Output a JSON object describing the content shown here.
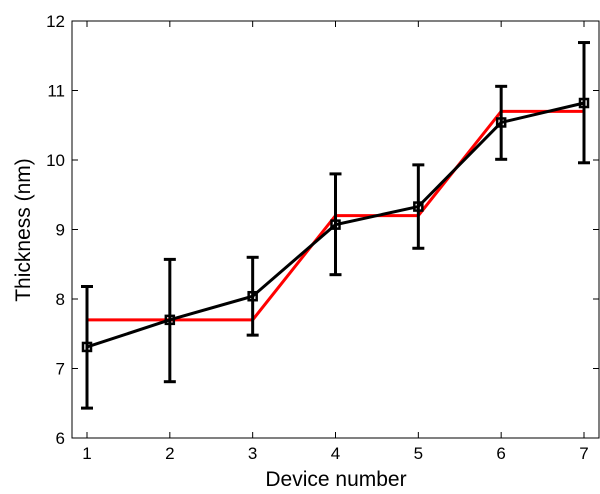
{
  "chart_data": {
    "type": "line",
    "xlabel": "Device number",
    "ylabel": "Thickness (nm)",
    "xlim": [
      1,
      7
    ],
    "ylim": [
      6,
      12
    ],
    "xticks": [
      1,
      2,
      3,
      4,
      5,
      6,
      7
    ],
    "yticks": [
      6,
      7,
      8,
      9,
      10,
      11,
      12
    ],
    "grid": false,
    "series": [
      {
        "style": "step-line",
        "color": "#ff0000",
        "points": [
          {
            "x": 1,
            "y": 7.7
          },
          {
            "x": 3,
            "y": 7.7
          },
          {
            "x": 4,
            "y": 9.2
          },
          {
            "x": 5,
            "y": 9.2
          },
          {
            "x": 6,
            "y": 10.7
          },
          {
            "x": 7,
            "y": 10.7
          }
        ]
      },
      {
        "style": "line-markers-errorbars",
        "color": "#000000",
        "marker": "square-icon",
        "x": [
          1,
          2,
          3,
          4,
          5,
          6,
          7
        ],
        "y": [
          7.31,
          7.7,
          8.04,
          9.07,
          9.33,
          10.54,
          10.82
        ],
        "yerr_low": [
          6.43,
          6.81,
          7.48,
          8.35,
          8.73,
          10.01,
          9.96
        ],
        "yerr_high": [
          8.18,
          8.57,
          8.6,
          9.8,
          9.93,
          11.06,
          11.69
        ]
      }
    ]
  }
}
